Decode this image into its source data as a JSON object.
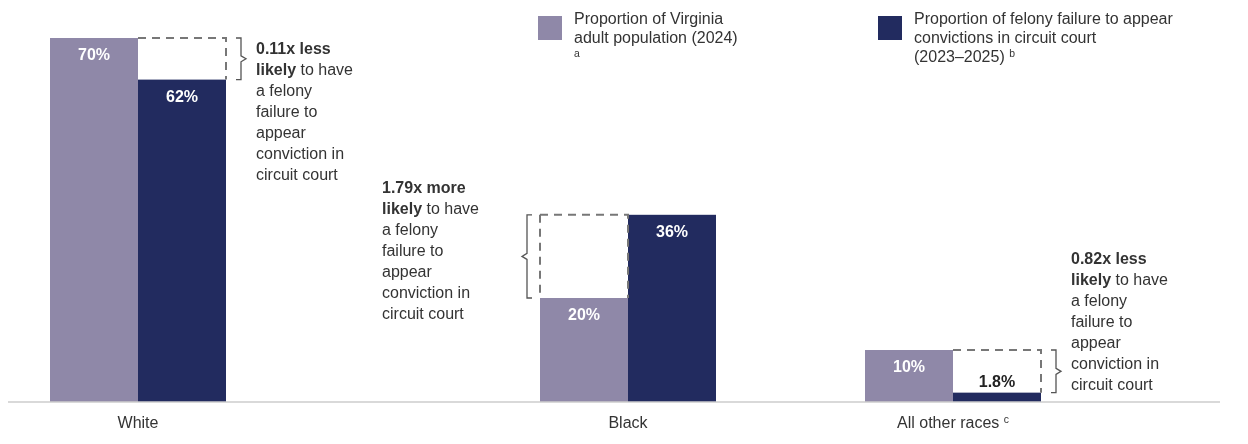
{
  "chart_data": {
    "type": "bar",
    "categories": [
      "White",
      "Black",
      "All other races $^{c}$"
    ],
    "series": [
      {
        "name": "Proportion of Virginia adult population (2024) $^{a}$",
        "color": "#8f88a8",
        "values": [
          70,
          20,
          10
        ],
        "value_labels": [
          "70%",
          "20%",
          "10%"
        ]
      },
      {
        "name": "Proportion of felony failure to appear convictions in circuit court (2023–2025) $^{b}$",
        "color": "#222b5f",
        "values": [
          62,
          36,
          1.8
        ],
        "value_labels": [
          "62%",
          "36%",
          "1.8%"
        ]
      }
    ],
    "legend": "top right",
    "annotations": [
      "0.11x less likely to have a felony failure to appear conviction in circuit court",
      "1.79x more likely to have a felony failure to appear conviction in circuit court",
      "0.82x less likely to have a felony failure to appear conviction in circuit court"
    ]
  }
}
